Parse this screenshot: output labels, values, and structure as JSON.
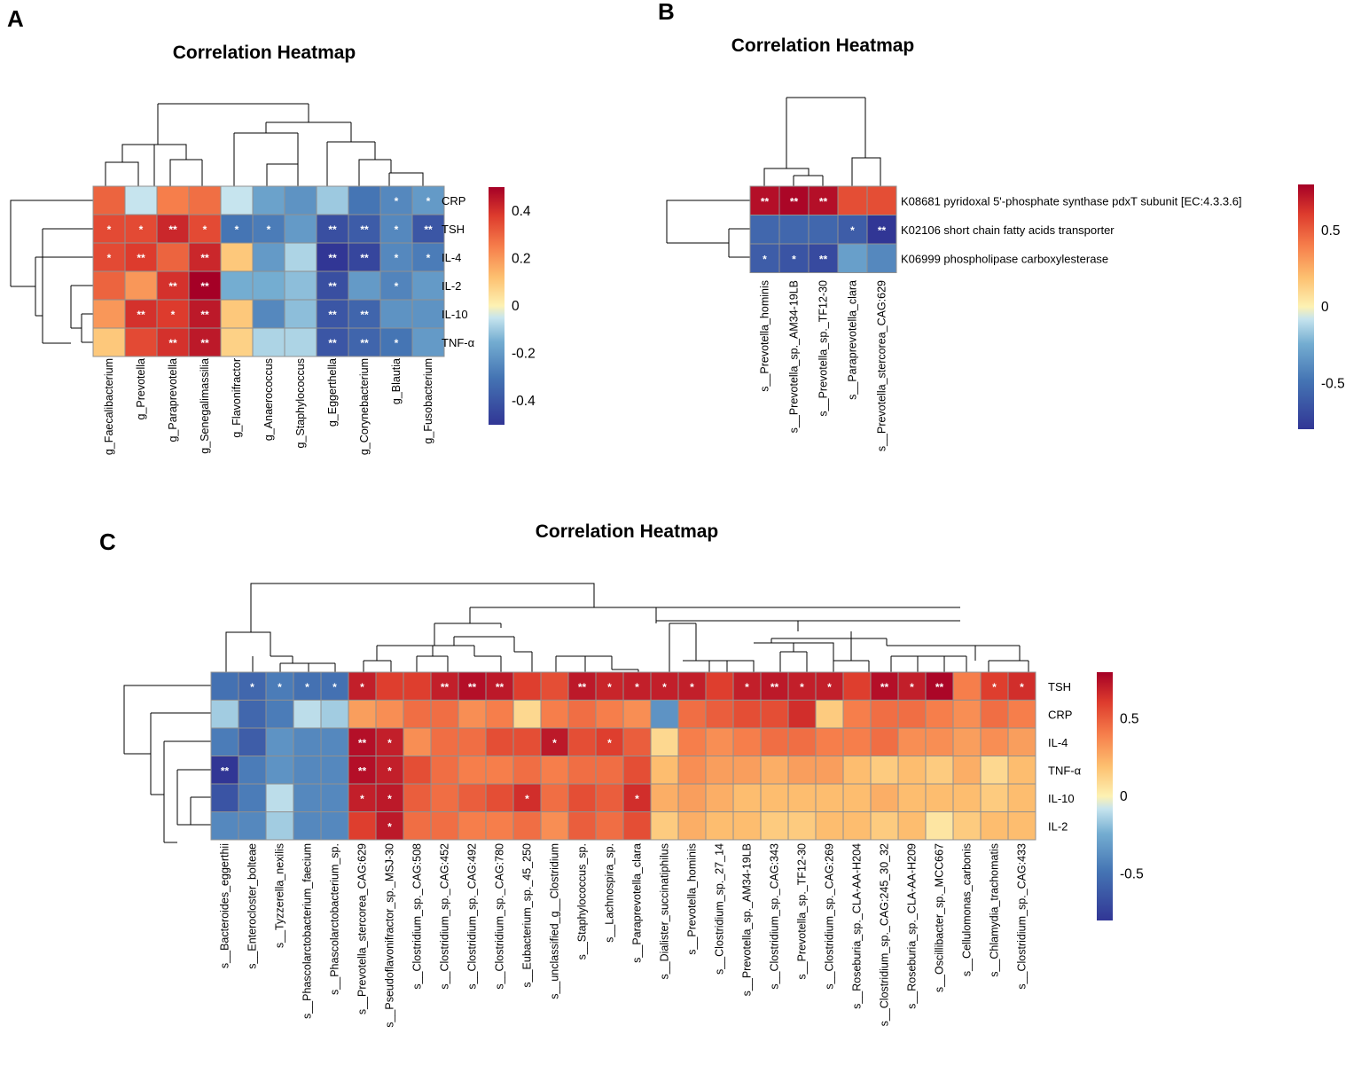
{
  "palette": {
    "stops": [
      {
        "t": 0.0,
        "c": "#313695"
      },
      {
        "t": 0.2,
        "c": "#4575b4"
      },
      {
        "t": 0.35,
        "c": "#74add1"
      },
      {
        "t": 0.45,
        "c": "#c6e4ee"
      },
      {
        "t": 0.5,
        "c": "#fdf2b3"
      },
      {
        "t": 0.62,
        "c": "#fdc070"
      },
      {
        "t": 0.75,
        "c": "#f67e4b"
      },
      {
        "t": 0.88,
        "c": "#dd3b2d"
      },
      {
        "t": 1.0,
        "c": "#a50026"
      }
    ],
    "cell_border": "#909090"
  },
  "chart_data": [
    {
      "panel": "A",
      "type": "heatmap",
      "title": "Correlation Heatmap",
      "rows": [
        "CRP",
        "TSH",
        "IL-4",
        "IL-2",
        "IL-10",
        "TNF-α"
      ],
      "columns": [
        "g_Faecalibacterium",
        "g_Prevotella",
        "g_Paraprevotella",
        "g_Senegalimassilia",
        "g_Flavonifractor",
        "g_Anaerococcus",
        "g_Staphylococcus",
        "g_Eggerthella",
        "g_Corynebacterium",
        "g_Blautia",
        "g_Fusobacterium"
      ],
      "values": [
        [
          0.3,
          -0.05,
          0.25,
          0.28,
          -0.05,
          -0.18,
          -0.22,
          -0.1,
          -0.3,
          -0.25,
          -0.2
        ],
        [
          0.35,
          0.35,
          0.42,
          0.35,
          -0.3,
          -0.28,
          -0.2,
          -0.42,
          -0.38,
          -0.25,
          -0.4
        ],
        [
          0.35,
          0.38,
          0.3,
          0.42,
          0.1,
          -0.2,
          -0.08,
          -0.5,
          -0.45,
          -0.25,
          -0.28
        ],
        [
          0.3,
          0.2,
          0.4,
          0.5,
          -0.15,
          -0.15,
          -0.12,
          -0.42,
          -0.2,
          -0.26,
          -0.2
        ],
        [
          0.2,
          0.4,
          0.38,
          0.45,
          0.1,
          -0.25,
          -0.12,
          -0.4,
          -0.35,
          -0.22,
          -0.22
        ],
        [
          0.1,
          0.35,
          0.4,
          0.45,
          0.08,
          -0.08,
          -0.08,
          -0.4,
          -0.35,
          -0.3,
          -0.2
        ]
      ],
      "stars": [
        [
          "",
          "",
          "",
          "",
          "",
          "",
          "",
          "",
          "",
          "*",
          "*"
        ],
        [
          "*",
          "*",
          "**",
          "*",
          "*",
          "*",
          "",
          "**",
          "**",
          "*",
          "**"
        ],
        [
          "*",
          "**",
          "",
          "**",
          "",
          "",
          "",
          "**",
          "**",
          "*",
          "*"
        ],
        [
          "",
          "",
          "**",
          "**",
          "",
          "",
          "",
          "**",
          "",
          "*",
          ""
        ],
        [
          "",
          "**",
          "*",
          "**",
          "",
          "",
          "",
          "**",
          "**",
          "",
          ""
        ],
        [
          "",
          "",
          "**",
          "**",
          "",
          "",
          "",
          "**",
          "**",
          "*",
          ""
        ]
      ],
      "legend": {
        "min": -0.5,
        "max": 0.5,
        "ticks": [
          0.4,
          0.2,
          0,
          -0.2,
          -0.4
        ],
        "tick_labels": [
          "0.4",
          "0.2",
          "0",
          "-0.2",
          "-0.4"
        ]
      }
    },
    {
      "panel": "B",
      "type": "heatmap",
      "title": "Correlation Heatmap",
      "rows": [
        "K08681 pyridoxal 5'-phosphate synthase pdxT subunit [EC:4.3.3.6]",
        "K02106 short chain fatty acids transporter",
        "K06999 phospholipase carboxylesterase"
      ],
      "columns": [
        "s__Prevotella_hominis",
        "s__Prevotella_sp._AM34-19LB",
        "s__Prevotella_sp._TF12-30",
        "s__Paraprevotella_clara",
        "s__Prevotella_stercorea_CAG:629"
      ],
      "values": [
        [
          0.75,
          0.78,
          0.75,
          0.55,
          0.55
        ],
        [
          -0.55,
          -0.55,
          -0.55,
          -0.6,
          -0.8
        ],
        [
          -0.6,
          -0.65,
          -0.7,
          -0.3,
          -0.4
        ]
      ],
      "stars": [
        [
          "**",
          "**",
          "**",
          "",
          ""
        ],
        [
          "",
          "",
          "",
          "*",
          "**"
        ],
        [
          "*",
          "*",
          "**",
          "",
          ""
        ]
      ],
      "legend": {
        "min": -0.8,
        "max": 0.8,
        "ticks": [
          0.5,
          0,
          -0.5
        ],
        "tick_labels": [
          "0.5",
          "0",
          "-0.5"
        ]
      }
    },
    {
      "panel": "C",
      "type": "heatmap",
      "title": "Correlation Heatmap",
      "rows": [
        "TSH",
        "CRP",
        "IL-4",
        "TNF-α",
        "IL-10",
        "IL-2"
      ],
      "columns": [
        "s__Bacteroides_eggerthii",
        "s__Enterocloster_bolteae",
        "s__Tyzzerella_nexilis",
        "s__Phascolarctobacterium_faecium",
        "s__Phascolarctobacterium_sp.",
        "s__Prevotella_stercorea_CAG:629",
        "s__Pseudoflavonifractor_sp._MSJ-30",
        "s__Clostridium_sp._CAG:508",
        "s__Clostridium_sp._CAG:452",
        "s__Clostridium_sp._CAG:492",
        "s__Clostridium_sp._CAG:780",
        "s__Eubacterium_sp._45_250",
        "s__unclassified_g__Clostridium",
        "s__Staphylococcus_sp.",
        "s__Lachnospira_sp.",
        "s__Paraprevotella_clara",
        "s__Dialister_succinatiphilus",
        "s__Prevotella_hominis",
        "s__Clostridium_sp._27_14",
        "s__Prevotella_sp._AM34-19LB",
        "s__Clostridium_sp._CAG:343",
        "s__Prevotella_sp._TF12-30",
        "s__Clostridium_sp._CAG:269",
        "s__Roseburia_sp._CLA-AA-H204",
        "s__Clostridium_sp._CAG:245_30_32",
        "s__Roseburia_sp._CLA-AA-H209",
        "s__Oscillibacter_sp._MCC667",
        "s__Cellulomonas_carbonis",
        "s__Chlamydia_trachomatis",
        "s__Clostridium_sp._CAG:433"
      ],
      "values": [
        [
          -0.5,
          -0.55,
          -0.45,
          -0.5,
          -0.5,
          0.7,
          0.6,
          0.6,
          0.7,
          0.75,
          0.72,
          0.6,
          0.55,
          0.72,
          0.68,
          0.7,
          0.7,
          0.7,
          0.6,
          0.7,
          0.72,
          0.7,
          0.7,
          0.6,
          0.75,
          0.7,
          0.78,
          0.4,
          0.6,
          0.65
        ],
        [
          -0.15,
          -0.55,
          -0.45,
          -0.1,
          -0.15,
          0.3,
          0.35,
          0.45,
          0.45,
          0.35,
          0.4,
          0.1,
          0.4,
          0.45,
          0.4,
          0.35,
          -0.35,
          0.45,
          0.5,
          0.55,
          0.55,
          0.65,
          0.15,
          0.4,
          0.45,
          0.45,
          0.4,
          0.35,
          0.45,
          0.4
        ],
        [
          -0.45,
          -0.6,
          -0.35,
          -0.4,
          -0.4,
          0.75,
          0.7,
          0.35,
          0.45,
          0.45,
          0.55,
          0.55,
          0.72,
          0.55,
          0.6,
          0.5,
          0.1,
          0.4,
          0.35,
          0.4,
          0.45,
          0.45,
          0.4,
          0.4,
          0.45,
          0.35,
          0.35,
          0.3,
          0.35,
          0.3
        ],
        [
          -0.85,
          -0.45,
          -0.35,
          -0.4,
          -0.4,
          0.75,
          0.7,
          0.55,
          0.45,
          0.4,
          0.4,
          0.45,
          0.4,
          0.45,
          0.45,
          0.55,
          0.2,
          0.35,
          0.3,
          0.3,
          0.25,
          0.3,
          0.3,
          0.2,
          0.15,
          0.2,
          0.15,
          0.25,
          0.1,
          0.2
        ],
        [
          -0.65,
          -0.45,
          -0.1,
          -0.4,
          -0.4,
          0.7,
          0.72,
          0.5,
          0.45,
          0.5,
          0.55,
          0.65,
          0.45,
          0.55,
          0.5,
          0.65,
          0.25,
          0.3,
          0.25,
          0.2,
          0.2,
          0.2,
          0.2,
          0.2,
          0.25,
          0.2,
          0.2,
          0.2,
          0.15,
          0.2
        ],
        [
          -0.4,
          -0.4,
          -0.15,
          -0.4,
          -0.4,
          0.6,
          0.72,
          0.45,
          0.45,
          0.4,
          0.4,
          0.45,
          0.35,
          0.5,
          0.45,
          0.55,
          0.15,
          0.25,
          0.2,
          0.2,
          0.15,
          0.15,
          0.2,
          0.2,
          0.15,
          0.2,
          0.05,
          0.15,
          0.2,
          0.2
        ]
      ],
      "stars": [
        [
          "",
          "*",
          "*",
          "*",
          "*",
          "*",
          "",
          "",
          "**",
          "**",
          "**",
          "",
          "",
          "**",
          "*",
          "*",
          "*",
          "*",
          "",
          "*",
          "**",
          "*",
          "*",
          "",
          "**",
          "*",
          "**",
          "",
          "*",
          "*"
        ],
        [
          "",
          "",
          "",
          "",
          "",
          "",
          "",
          "",
          "",
          "",
          "",
          "",
          "",
          "",
          "",
          "",
          "",
          "",
          "",
          "",
          "",
          "",
          "",
          "",
          "",
          "",
          "",
          "",
          "",
          ""
        ],
        [
          "",
          "",
          "",
          "",
          "",
          "**",
          "*",
          "",
          "",
          "",
          "",
          "",
          "*",
          "",
          "*",
          "",
          "",
          "",
          "",
          "",
          "",
          "",
          "",
          "",
          "",
          "",
          "",
          "",
          "",
          ""
        ],
        [
          "**",
          "",
          "",
          "",
          "",
          "**",
          "*",
          "",
          "",
          "",
          "",
          "",
          "",
          "",
          "",
          "",
          "",
          "",
          "",
          "",
          "",
          "",
          "",
          "",
          "",
          "",
          "",
          "",
          "",
          ""
        ],
        [
          "",
          "",
          "",
          "",
          "",
          "*",
          "*",
          "",
          "",
          "",
          "",
          "*",
          "",
          "",
          "",
          "*",
          "",
          "",
          "",
          "",
          "",
          "",
          "",
          "",
          "",
          "",
          "",
          "",
          "",
          ""
        ],
        [
          "",
          "",
          "",
          "",
          "",
          "",
          "*",
          "",
          "",
          "",
          "",
          "",
          "",
          "",
          "",
          "",
          "",
          "",
          "",
          "",
          "",
          "",
          "",
          "",
          "",
          "",
          "",
          "",
          "",
          ""
        ]
      ],
      "legend": {
        "min": -0.8,
        "max": 0.8,
        "ticks": [
          0.5,
          0,
          -0.5
        ],
        "tick_labels": [
          "0.5",
          "0",
          "-0.5"
        ]
      }
    }
  ]
}
